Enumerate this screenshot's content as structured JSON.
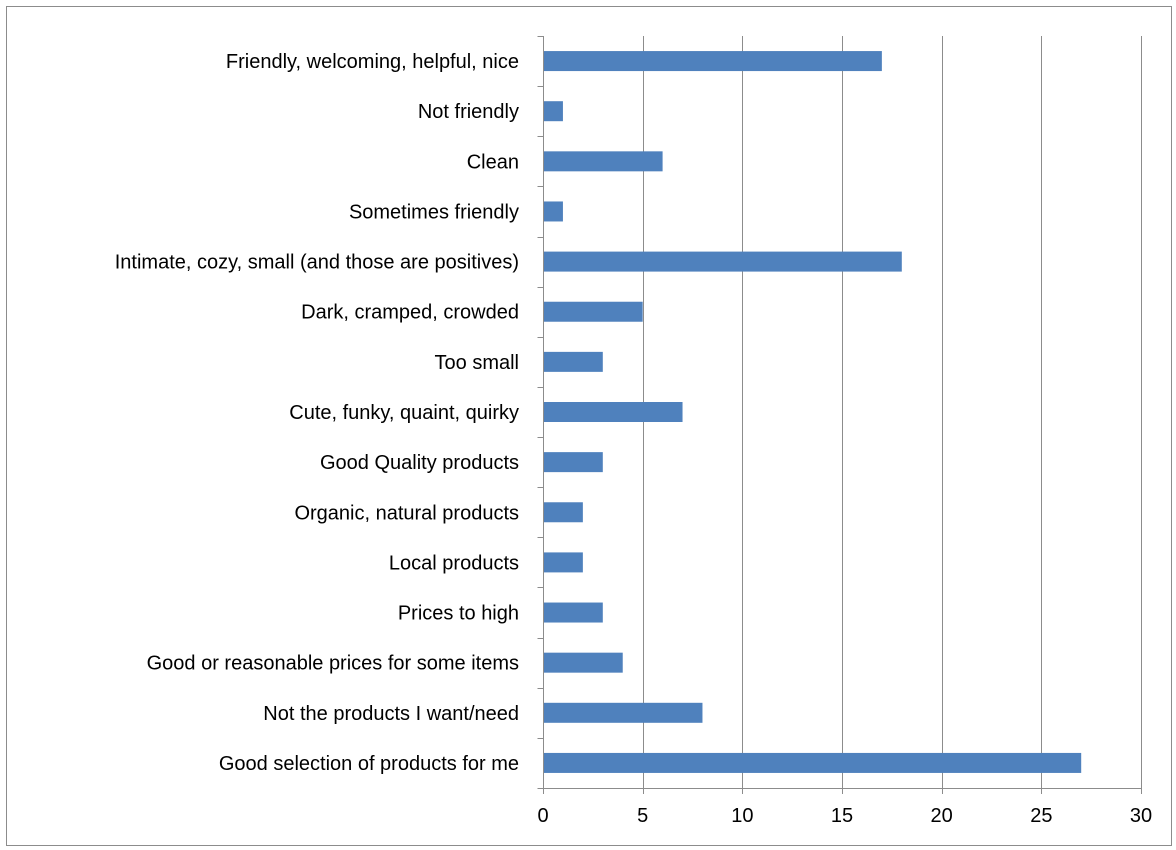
{
  "colors": {
    "bar": "#4f81bd",
    "grid": "#8c8c8c",
    "text": "#000000"
  },
  "chart_data": {
    "type": "bar",
    "orientation": "horizontal",
    "title": "",
    "xlabel": "",
    "ylabel": "",
    "xlim": [
      0,
      30
    ],
    "x_ticks": [
      0,
      5,
      10,
      15,
      20,
      25,
      30
    ],
    "grid": "vertical major gridlines",
    "legend": "none",
    "categories": [
      "Friendly, welcoming, helpful, nice",
      "Not friendly",
      "Clean",
      "Sometimes friendly",
      "Intimate, cozy, small (and those are positives)",
      "Dark, cramped, crowded",
      "Too small",
      "Cute, funky, quaint, quirky",
      "Good Quality products",
      "Organic, natural products",
      "Local products",
      "Prices to high",
      "Good or reasonable prices for some items",
      "Not the products I want/need",
      "Good selection of products for me"
    ],
    "values": [
      17,
      1,
      6,
      1,
      18,
      5,
      3,
      7,
      3,
      2,
      2,
      3,
      4,
      8,
      27
    ]
  }
}
